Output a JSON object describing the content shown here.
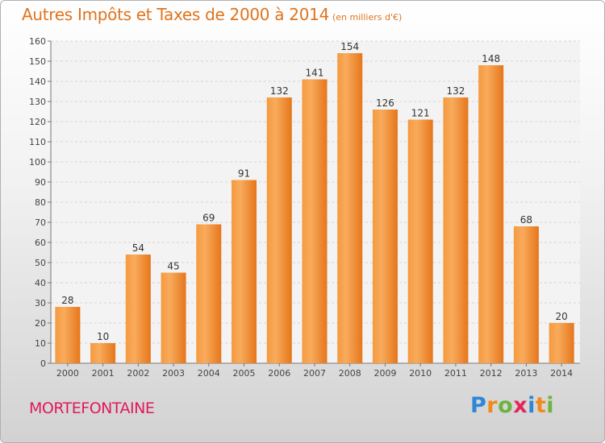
{
  "title": {
    "main": "Autres Impôts et Taxes de 2000 à 2014",
    "unit": "(en milliers d'€)"
  },
  "commune": "MORTEFONTAINE",
  "brand": "Proxiti",
  "colors": {
    "title": "#e0731c",
    "bar_light": "#f8a855",
    "bar_dark": "#e6761b",
    "commune": "#e0195e"
  },
  "chart_data": {
    "type": "bar",
    "title": "Autres Impôts et Taxes de 2000 à 2014",
    "subtitle": "(en milliers d'€)",
    "categories": [
      "2000",
      "2001",
      "2002",
      "2003",
      "2004",
      "2005",
      "2006",
      "2007",
      "2008",
      "2009",
      "2010",
      "2011",
      "2012",
      "2013",
      "2014"
    ],
    "values": [
      28,
      10,
      54,
      45,
      69,
      91,
      132,
      141,
      154,
      126,
      121,
      132,
      148,
      68,
      20
    ],
    "ylim": [
      0,
      160
    ],
    "yticks": [
      0,
      10,
      20,
      30,
      40,
      50,
      60,
      70,
      80,
      90,
      100,
      110,
      120,
      130,
      140,
      150,
      160
    ],
    "grid": true,
    "xlabel": "",
    "ylabel": ""
  }
}
